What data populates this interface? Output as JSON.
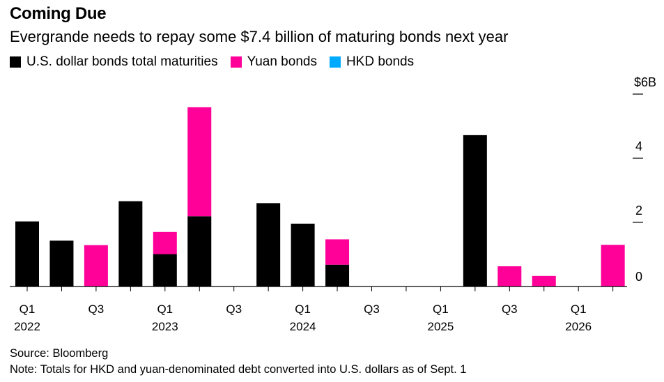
{
  "header": {
    "title": "Coming Due",
    "subtitle": "Evergrande needs to repay some $7.4 billion of maturing bonds next year"
  },
  "legend": {
    "items": [
      {
        "label": "U.S. dollar bonds total maturities",
        "color": "#000000"
      },
      {
        "label": "Yuan bonds",
        "color": "#ff0099"
      },
      {
        "label": "HKD bonds",
        "color": "#00aaff"
      }
    ]
  },
  "footer": {
    "source": "Source: Bloomberg",
    "note": "Note: Totals for HKD and yuan-denominated debt converted into U.S. dollars as of Sept. 1"
  },
  "chart_data": {
    "type": "bar",
    "stacked": true,
    "categories": [
      "Q1 2022",
      "Q2 2022",
      "Q3 2022",
      "Q4 2022",
      "Q1 2023",
      "Q2 2023",
      "Q3 2023",
      "Q4 2023",
      "Q1 2024",
      "Q2 2024",
      "Q3 2024",
      "Q4 2024",
      "Q1 2025",
      "Q2 2025",
      "Q3 2025",
      "Q4 2025",
      "Q1 2026",
      "Q2 2026"
    ],
    "x_tick_labels": [
      {
        "index": 0,
        "quarter": "Q1",
        "year": "2022"
      },
      {
        "index": 2,
        "quarter": "Q3",
        "year": ""
      },
      {
        "index": 4,
        "quarter": "Q1",
        "year": "2023"
      },
      {
        "index": 6,
        "quarter": "Q3",
        "year": ""
      },
      {
        "index": 8,
        "quarter": "Q1",
        "year": "2024"
      },
      {
        "index": 10,
        "quarter": "Q3",
        "year": ""
      },
      {
        "index": 12,
        "quarter": "Q1",
        "year": "2025"
      },
      {
        "index": 14,
        "quarter": "Q3",
        "year": ""
      },
      {
        "index": 16,
        "quarter": "Q1",
        "year": "2026"
      }
    ],
    "series": [
      {
        "name": "U.S. dollar bonds total maturities",
        "color": "#000000",
        "values": [
          2.03,
          1.43,
          0,
          2.66,
          1.01,
          2.19,
          0,
          2.6,
          1.96,
          0.68,
          0,
          0,
          0,
          4.72,
          0,
          0,
          0,
          0
        ]
      },
      {
        "name": "Yuan bonds",
        "color": "#ff0099",
        "values": [
          0,
          0,
          1.29,
          0,
          0.69,
          3.4,
          0,
          0,
          0,
          0.79,
          0,
          0,
          0,
          0,
          0.63,
          0.33,
          0,
          1.3
        ]
      },
      {
        "name": "HKD bonds",
        "color": "#00aaff",
        "values": [
          0,
          0,
          0,
          0,
          0,
          0,
          0,
          0,
          0,
          0,
          0,
          0,
          0,
          0,
          0,
          0,
          0,
          0
        ]
      }
    ],
    "y_ticks": [
      {
        "value": 0,
        "label": "0"
      },
      {
        "value": 2,
        "label": "2"
      },
      {
        "value": 4,
        "label": "4"
      },
      {
        "value": 6,
        "label": "$6B"
      }
    ],
    "ylim": [
      0,
      6
    ],
    "xlabel": "",
    "ylabel": "",
    "grid": false,
    "legend_position": "top-left"
  }
}
